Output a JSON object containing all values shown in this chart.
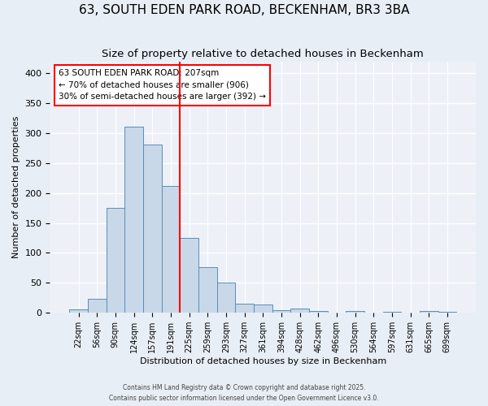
{
  "title": "63, SOUTH EDEN PARK ROAD, BECKENHAM, BR3 3BA",
  "subtitle": "Size of property relative to detached houses in Beckenham",
  "xlabel": "Distribution of detached houses by size in Beckenham",
  "ylabel": "Number of detached properties",
  "bin_labels": [
    "22sqm",
    "56sqm",
    "90sqm",
    "124sqm",
    "157sqm",
    "191sqm",
    "225sqm",
    "259sqm",
    "293sqm",
    "327sqm",
    "361sqm",
    "394sqm",
    "428sqm",
    "462sqm",
    "496sqm",
    "530sqm",
    "564sqm",
    "597sqm",
    "631sqm",
    "665sqm",
    "699sqm"
  ],
  "bar_values": [
    6,
    24,
    175,
    311,
    281,
    212,
    125,
    76,
    50,
    15,
    14,
    5,
    7,
    3,
    0,
    3,
    0,
    2,
    0,
    3,
    2
  ],
  "bar_color": "#c8d8e8",
  "bar_edge_color": "#5b8db8",
  "vline_color": "red",
  "vline_pos": 5.5,
  "annotation_text": "63 SOUTH EDEN PARK ROAD: 207sqm\n← 70% of detached houses are smaller (906)\n30% of semi-detached houses are larger (392) →",
  "annotation_box_color": "white",
  "annotation_box_edge": "red",
  "bg_color": "#e8eef5",
  "plot_bg_color": "#edf1f7",
  "grid_color": "white",
  "title_fontsize": 11,
  "subtitle_fontsize": 9.5,
  "axis_label_fontsize": 8,
  "tick_fontsize": 7,
  "footer_line1": "Contains HM Land Registry data © Crown copyright and database right 2025.",
  "footer_line2": "Contains public sector information licensed under the Open Government Licence v3.0.",
  "ylim": [
    0,
    420
  ],
  "yticks": [
    0,
    50,
    100,
    150,
    200,
    250,
    300,
    350,
    400
  ]
}
